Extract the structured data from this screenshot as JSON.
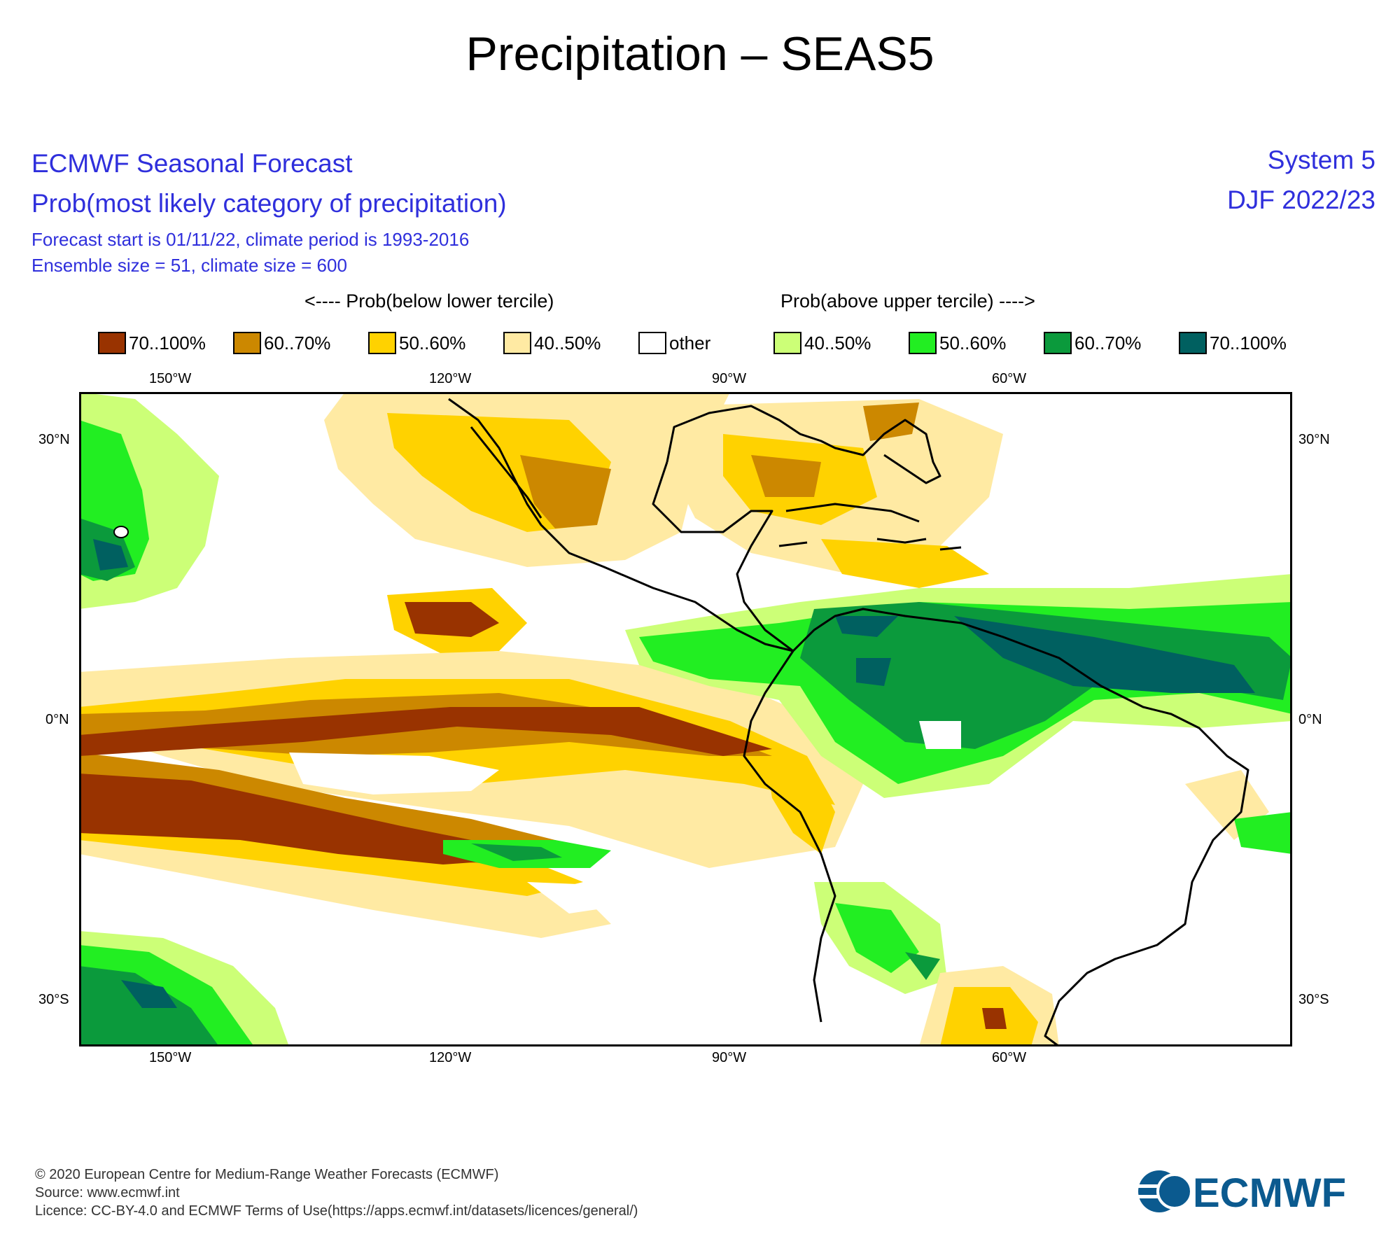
{
  "page_title": "Precipitation – SEAS5",
  "header": {
    "line1": "ECMWF Seasonal Forecast",
    "line2": "Prob(most likely category of precipitation)",
    "line3": "Forecast start is 01/11/22, climate period is 1993-2016",
    "line4": "Ensemble size = 51, climate size = 600",
    "system": "System 5",
    "period": "DJF 2022/23"
  },
  "legend": {
    "below_label": "<---- Prob(below lower tercile)",
    "above_label": "Prob(above upper tercile) ---->",
    "items": [
      {
        "label": "70..100%",
        "color": "#993300"
      },
      {
        "label": "60..70%",
        "color": "#cc8800"
      },
      {
        "label": "50..60%",
        "color": "#ffd200"
      },
      {
        "label": "40..50%",
        "color": "#ffeaa3"
      },
      {
        "label": "other",
        "color": "#ffffff"
      },
      {
        "label": "40..50%",
        "color": "#ccff77"
      },
      {
        "label": "50..60%",
        "color": "#22ee22"
      },
      {
        "label": "60..70%",
        "color": "#0b9a3c"
      },
      {
        "label": "70..100%",
        "color": "#006060"
      }
    ]
  },
  "axes": {
    "lon_labels": [
      "150°W",
      "120°W",
      "90°W",
      "60°W"
    ],
    "lat_labels": [
      "30°N",
      "0°N",
      "30°S"
    ]
  },
  "footer": {
    "copyright": "© 2020 European Centre for Medium-Range Weather Forecasts (ECMWF)",
    "source": "Source: www.ecmwf.int",
    "licence": "Licence: CC-BY-4.0 and ECMWF Terms of Use(https://apps.ecmwf.int/datasets/licences/general/)",
    "logo_text": "ECMWF"
  }
}
